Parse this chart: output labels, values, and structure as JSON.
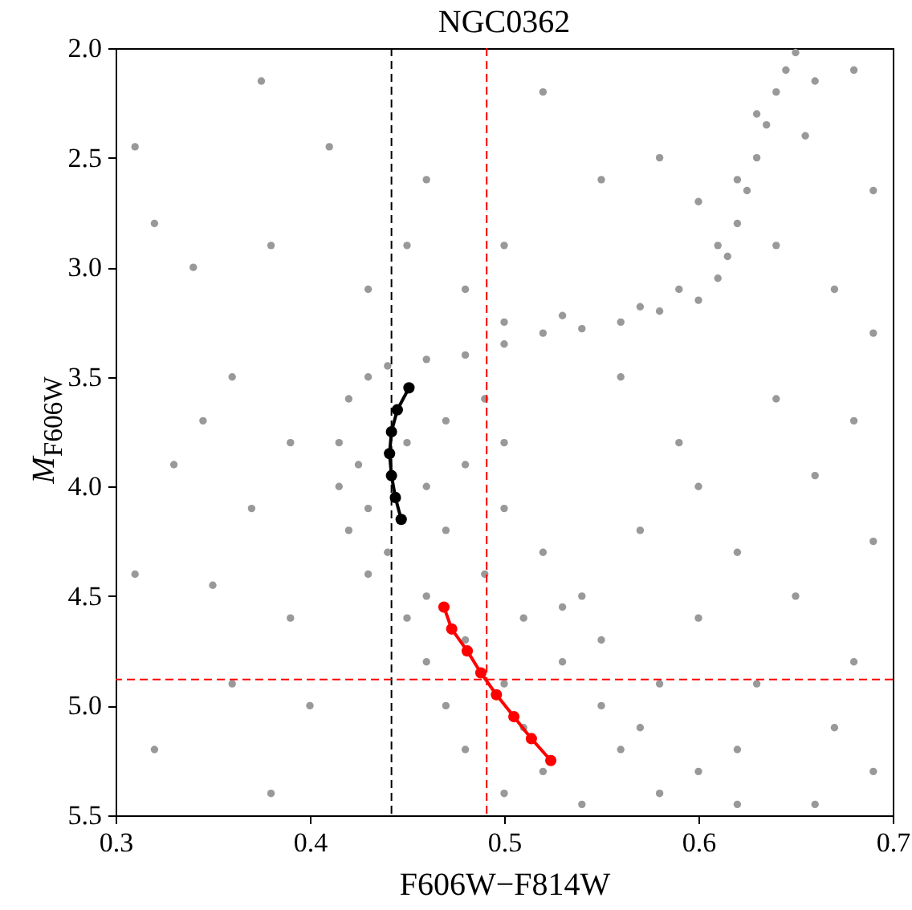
{
  "chart_data": {
    "type": "scatter",
    "title": "NGC0362",
    "xlabel": "F606W−F814W",
    "ylabel": "M$_{F606W}$",
    "xlim": [
      0.3,
      0.7
    ],
    "xticks": [
      0.3,
      0.4,
      0.5,
      0.6,
      0.7
    ],
    "ylim": [
      5.5,
      2.0
    ],
    "yticks": [
      {
        "value": 2,
        "label": "2.0"
      },
      2.5,
      {
        "value": 3,
        "label": "3.0"
      },
      3.5,
      {
        "value": 4,
        "label": "4.0"
      },
      4.5,
      {
        "value": 5,
        "label": "5.0"
      },
      5.5
    ],
    "grid": false,
    "marker": "circle",
    "series": [
      {
        "color": "#999999",
        "x": [
          0.42,
          0.43,
          0.44,
          0.46,
          0.48,
          0.415,
          0.425,
          0.45,
          0.47,
          0.49,
          0.415,
          0.43,
          0.46,
          0.48,
          0.5,
          0.42,
          0.44,
          0.47,
          0.5,
          0.43,
          0.46,
          0.49,
          0.52,
          0.45,
          0.48,
          0.51,
          0.54,
          0.46,
          0.5,
          0.53,
          0.47,
          0.51,
          0.55,
          0.48,
          0.52,
          0.56,
          0.5,
          0.54,
          0.58,
          0.6,
          0.57,
          0.62,
          0.58,
          0.55,
          0.53,
          0.5,
          0.52,
          0.54,
          0.56,
          0.58,
          0.6,
          0.61,
          0.5,
          0.53,
          0.57,
          0.59,
          0.615,
          0.62,
          0.625,
          0.63,
          0.635,
          0.64,
          0.645,
          0.65,
          0.61,
          0.62,
          0.63,
          0.655,
          0.66,
          0.6,
          0.64,
          0.31,
          0.32,
          0.36,
          0.34,
          0.38,
          0.33,
          0.37,
          0.31,
          0.35,
          0.39,
          0.32,
          0.36,
          0.38,
          0.4,
          0.345,
          0.39,
          0.41,
          0.375,
          0.46,
          0.52,
          0.55,
          0.5,
          0.58,
          0.68,
          0.69,
          0.67,
          0.69,
          0.68,
          0.66,
          0.69,
          0.65,
          0.68,
          0.67,
          0.69,
          0.66,
          0.62,
          0.6,
          0.64,
          0.59,
          0.57,
          0.6,
          0.63,
          0.62,
          0.56,
          0.48,
          0.43,
          0.45
        ],
        "values": [
          3.6,
          3.5,
          3.45,
          3.42,
          3.4,
          3.8,
          3.9,
          3.8,
          3.7,
          3.6,
          4.0,
          4.1,
          4.0,
          3.9,
          3.8,
          4.2,
          4.3,
          4.2,
          4.1,
          4.4,
          4.5,
          4.4,
          4.3,
          4.6,
          4.7,
          4.6,
          4.5,
          4.8,
          4.9,
          4.8,
          5.0,
          5.1,
          5.0,
          5.2,
          5.3,
          5.2,
          5.4,
          5.45,
          5.4,
          5.3,
          5.1,
          5.45,
          4.9,
          4.7,
          4.55,
          3.35,
          3.3,
          3.28,
          3.25,
          3.2,
          3.15,
          3.05,
          3.25,
          3.22,
          3.18,
          3.1,
          2.95,
          2.8,
          2.65,
          2.5,
          2.35,
          2.2,
          2.1,
          2.02,
          2.9,
          2.6,
          2.3,
          2.4,
          2.15,
          2.7,
          2.9,
          2.45,
          2.8,
          3.5,
          3.0,
          2.9,
          3.9,
          4.1,
          4.4,
          4.45,
          4.6,
          5.2,
          4.9,
          5.4,
          5.0,
          3.7,
          3.8,
          2.45,
          2.15,
          2.6,
          2.2,
          2.6,
          2.9,
          2.5,
          2.1,
          2.65,
          3.1,
          3.3,
          3.7,
          3.95,
          4.25,
          4.5,
          4.8,
          5.1,
          5.3,
          5.45,
          4.3,
          4.0,
          3.6,
          3.8,
          4.2,
          4.6,
          4.9,
          5.2,
          3.5,
          3.1,
          3.1,
          2.9
        ]
      },
      {
        "type": "line",
        "color": "#000000",
        "x": [
          0.451,
          0.445,
          0.442,
          0.441,
          0.442,
          0.444,
          0.447
        ],
        "values": [
          3.55,
          3.65,
          3.75,
          3.85,
          3.95,
          4.05,
          4.15
        ]
      },
      {
        "type": "line",
        "color": "#ff0000",
        "x": [
          0.469,
          0.473,
          0.481,
          0.488,
          0.496,
          0.505,
          0.514,
          0.524
        ],
        "values": [
          4.55,
          4.65,
          4.75,
          4.85,
          4.95,
          5.05,
          5.15,
          5.25
        ]
      }
    ],
    "ref_lines": [
      {
        "axis": "x",
        "value": 0.442,
        "color": "#000000",
        "line_style": "dashed"
      },
      {
        "axis": "x",
        "value": 0.491,
        "color": "#ff0000",
        "line_style": "dashed"
      },
      {
        "axis": "y",
        "value": 4.88,
        "color": "#ff0000",
        "line_style": "dashed"
      }
    ]
  }
}
